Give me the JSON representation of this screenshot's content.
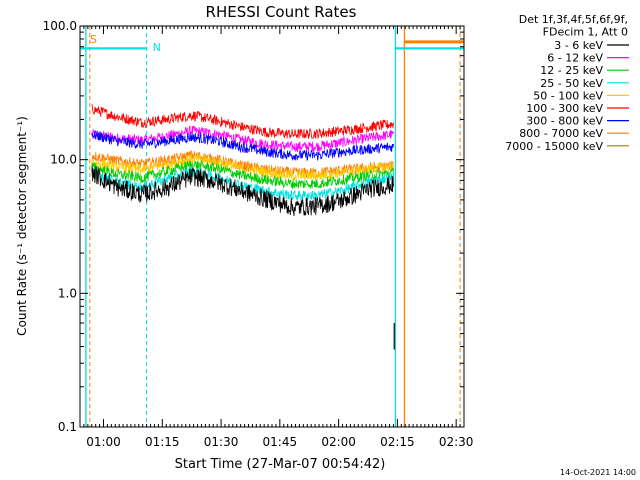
{
  "chart_data": {
    "type": "line",
    "title": "RHESSI Count Rates",
    "xlabel": "Start Time (27-Mar-07 00:54:42)",
    "ylabel": "Count Rate (s⁻¹ detector segment⁻¹)",
    "y_scale": "log",
    "ylim": [
      0.1,
      100.0
    ],
    "y_ticks": [
      "0.1",
      "1.0",
      "10.0",
      "100.0"
    ],
    "x_range_minutes": [
      54.0,
      152.0
    ],
    "x_ticks": [
      {
        "label": "01:00",
        "minute": 60
      },
      {
        "label": "01:15",
        "minute": 75
      },
      {
        "label": "01:30",
        "minute": 90
      },
      {
        "label": "01:45",
        "minute": 105
      },
      {
        "label": "02:00",
        "minute": 120
      },
      {
        "label": "02:15",
        "minute": 135
      },
      {
        "label": "02:30",
        "minute": 150
      }
    ],
    "legend_header": [
      "Det 1f,3f,4f,5f,6f,9f,",
      "FDecim 1, Att 0"
    ],
    "legend_position": "right",
    "series": [
      {
        "name": "3 - 6 keV",
        "color": "#000000",
        "start_minute": 57,
        "end_minute": 134,
        "values": [
          8.0,
          6.2,
          5.5,
          6.2,
          7.5,
          6.8,
          5.8,
          5.0,
          4.4,
          4.5,
          5.0,
          6.0,
          6.5
        ]
      },
      {
        "name": "6 - 12 keV",
        "color": "#ff00ff",
        "start_minute": 57,
        "end_minute": 134,
        "values": [
          15.5,
          14.5,
          14.0,
          15.0,
          16.5,
          15.5,
          14.0,
          13.0,
          12.5,
          12.6,
          13.5,
          14.5,
          15.5
        ]
      },
      {
        "name": "12 - 25 keV",
        "color": "#00cc00",
        "start_minute": 57,
        "end_minute": 134,
        "values": [
          8.8,
          7.8,
          7.3,
          8.2,
          9.2,
          8.6,
          7.6,
          7.0,
          6.6,
          6.6,
          7.1,
          7.6,
          8.0
        ]
      },
      {
        "name": "25 - 50 keV",
        "color": "#00e0e0",
        "start_minute": 57,
        "end_minute": 134,
        "values": [
          8.2,
          6.8,
          6.2,
          7.2,
          8.2,
          7.4,
          6.4,
          5.8,
          5.4,
          5.4,
          5.9,
          6.8,
          7.4
        ]
      },
      {
        "name": "50 - 100 keV",
        "color": "#ffcc00",
        "start_minute": 57,
        "end_minute": 134,
        "values": [
          9.6,
          8.8,
          8.4,
          9.2,
          10.2,
          9.6,
          8.6,
          8.0,
          7.6,
          7.6,
          8.0,
          8.5,
          8.9
        ]
      },
      {
        "name": "100 - 300 keV",
        "color": "#ff0000",
        "start_minute": 57,
        "end_minute": 134,
        "values": [
          24.0,
          21.0,
          19.0,
          20.0,
          21.5,
          19.5,
          17.5,
          16.0,
          15.5,
          15.7,
          16.5,
          17.5,
          18.5
        ]
      },
      {
        "name": "300 - 800 keV",
        "color": "#0000ff",
        "start_minute": 57,
        "end_minute": 134,
        "values": [
          15.5,
          13.8,
          13.0,
          13.8,
          14.8,
          13.8,
          12.4,
          11.4,
          10.8,
          10.8,
          11.5,
          12.0,
          12.5
        ]
      },
      {
        "name": "800 - 7000 keV",
        "color": "#ff7f00",
        "start_minute": 57,
        "end_minute": 134,
        "values": [
          10.8,
          9.8,
          9.3,
          9.9,
          10.8,
          10.0,
          9.0,
          8.4,
          8.0,
          8.0,
          8.4,
          8.7,
          9.0
        ]
      },
      {
        "name": "7000 - 15000 keV",
        "color": "#a08000",
        "start_minute": 57,
        "end_minute": 134,
        "values": []
      }
    ],
    "annotations": [
      {
        "label": "S",
        "color": "#ff7f00"
      },
      {
        "label": "N",
        "color": "#00e0e0"
      }
    ],
    "timestamp": "14-Oct-2021 14:00"
  }
}
